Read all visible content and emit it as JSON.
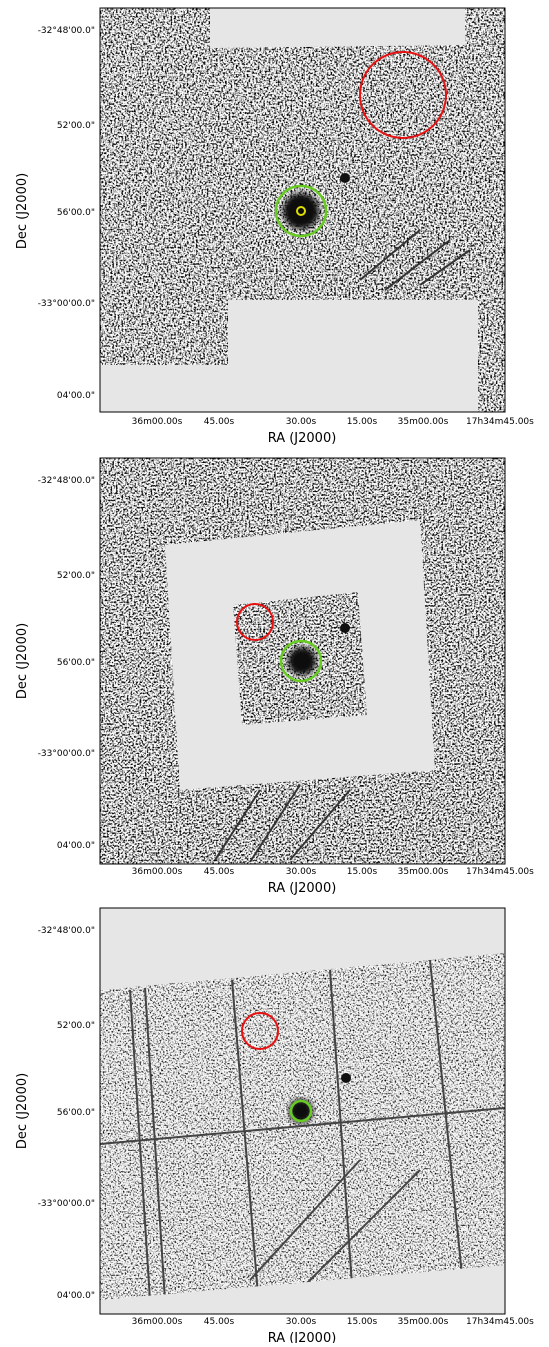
{
  "panels": [
    {
      "y_label": "Dec (J2000)",
      "x_label": "RA (J2000)",
      "dec_ticks": [
        "-32°48'00.0\"",
        "52'00.0\"",
        "56'00.0\"",
        "-33°00'00.0\"",
        "04'00.0\""
      ],
      "ra_ticks": [
        "36m00.00s",
        "45.00s",
        "30.00s",
        "15.00s",
        "35m00.00s",
        "17h34m45.00s"
      ]
    },
    {
      "y_label": "Dec (J2000)",
      "x_label": "RA (J2000)",
      "dec_ticks": [
        "-32°48'00.0\"",
        "52'00.0\"",
        "56'00.0\"",
        "-33°00'00.0\"",
        "04'00.0\""
      ],
      "ra_ticks": [
        "36m00.00s",
        "45.00s",
        "30.00s",
        "15.00s",
        "35m00.00s",
        "17h34m45.00s"
      ]
    },
    {
      "y_label": "Dec (J2000)",
      "x_label": "RA (J2000)",
      "dec_ticks": [
        "-32°48'00.0\"",
        "52'00.0\"",
        "56'00.0\"",
        "-33°00'00.0\"",
        "04'00.0\""
      ],
      "ra_ticks": [
        "36m00.00s",
        "45.00s",
        "30.00s",
        "15.00s",
        "35m00.00s",
        "17h34m45.00s"
      ]
    }
  ]
}
